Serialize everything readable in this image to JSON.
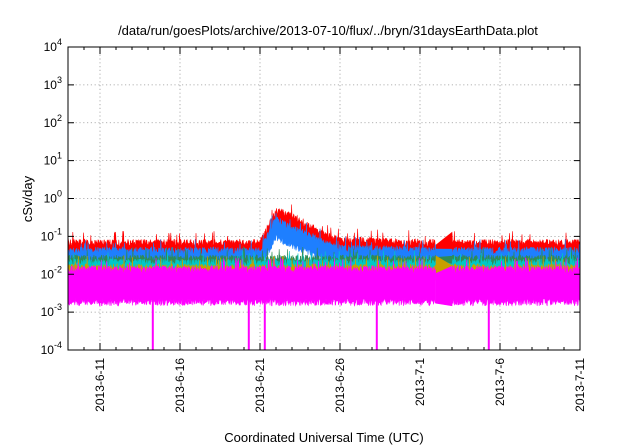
{
  "chart_data": {
    "type": "line",
    "title": "/data/run/goesPlots/archive/2013-07-10/flux/../bryn/31daysEarthData.plot",
    "xlabel": "Coordinated Universal Time (UTC)",
    "ylabel": "cSv/day",
    "yscale": "log",
    "ylim": [
      0.0001,
      10000
    ],
    "xlim": [
      "2013-06-09",
      "2013-07-11"
    ],
    "grid": true,
    "legend": "none",
    "x_ticks": [
      "2013-6-11",
      "2013-6-16",
      "2013-6-21",
      "2013-6-26",
      "2013-7-1",
      "2013-7-6",
      "2013-7-11"
    ],
    "y_ticks": [
      {
        "base": "10",
        "exp": "-4",
        "value": 0.0001
      },
      {
        "base": "10",
        "exp": "-3",
        "value": 0.001
      },
      {
        "base": "10",
        "exp": "-2",
        "value": 0.01
      },
      {
        "base": "10",
        "exp": "-1",
        "value": 0.1
      },
      {
        "base": "10",
        "exp": "0",
        "value": 1
      },
      {
        "base": "10",
        "exp": "1",
        "value": 10
      },
      {
        "base": "10",
        "exp": "2",
        "value": 100
      },
      {
        "base": "10",
        "exp": "3",
        "value": 1000
      },
      {
        "base": "10",
        "exp": "4",
        "value": 10000
      }
    ],
    "data_gap": [
      "2013-07-02",
      "2013-07-03"
    ],
    "series": [
      {
        "color": "#ff0000",
        "level_low": 0.03,
        "level_high": 0.07,
        "points": [
          [
            "2013-06-09",
            0.05
          ],
          [
            "2013-06-21",
            0.05
          ],
          [
            "2013-06-22",
            0.35
          ],
          [
            "2013-06-23",
            0.25
          ],
          [
            "2013-06-24",
            0.15
          ],
          [
            "2013-06-25",
            0.08
          ],
          [
            "2013-06-26",
            0.06
          ],
          [
            "2013-07-02",
            0.05
          ],
          [
            "2013-07-03",
            0.05
          ],
          [
            "2013-07-11",
            0.05
          ]
        ]
      },
      {
        "color": "#1e7fff",
        "level_low": 0.015,
        "level_high": 0.04,
        "points": [
          [
            "2013-06-09",
            0.03
          ],
          [
            "2013-06-21",
            0.03
          ],
          [
            "2013-06-22",
            0.2
          ],
          [
            "2013-06-23",
            0.12
          ],
          [
            "2013-06-24",
            0.08
          ],
          [
            "2013-06-25",
            0.05
          ],
          [
            "2013-06-26",
            0.035
          ],
          [
            "2013-07-02",
            0.03
          ],
          [
            "2013-07-03",
            0.03
          ],
          [
            "2013-07-11",
            0.03
          ]
        ]
      },
      {
        "color": "#2e8b57",
        "level_low": 0.012,
        "level_high": 0.025,
        "points": [
          [
            "2013-06-09",
            0.02
          ],
          [
            "2013-07-02",
            0.02
          ],
          [
            "2013-07-03",
            0.02
          ],
          [
            "2013-07-11",
            0.02
          ]
        ]
      },
      {
        "color": "#00c8c8",
        "level_low": 0.01,
        "level_high": 0.02,
        "points": [
          [
            "2013-06-09",
            0.016
          ],
          [
            "2013-07-02",
            0.016
          ],
          [
            "2013-07-03",
            0.016
          ],
          [
            "2013-07-11",
            0.016
          ]
        ]
      },
      {
        "color": "#c8a000",
        "level_low": 0.008,
        "level_high": 0.015,
        "points": [
          [
            "2013-06-09",
            0.012
          ],
          [
            "2013-07-02",
            0.012
          ],
          [
            "2013-07-03",
            0.012
          ],
          [
            "2013-07-11",
            0.012
          ]
        ]
      },
      {
        "color": "#ff00ff",
        "level_low": 0.003,
        "level_high": 0.02,
        "points": [
          [
            "2013-06-09",
            0.008
          ],
          [
            "2013-07-02",
            0.008
          ],
          [
            "2013-07-03",
            0.008
          ],
          [
            "2013-07-11",
            0.008
          ]
        ]
      }
    ],
    "dropouts": [
      {
        "date": "2013-06-14",
        "value": 0.0001
      },
      {
        "date": "2013-06-20",
        "value": 0.0001
      },
      {
        "date": "2013-06-21",
        "value": 0.0001
      },
      {
        "date": "2013-06-28",
        "value": 0.0001
      },
      {
        "date": "2013-07-05",
        "value": 0.0001
      }
    ]
  }
}
